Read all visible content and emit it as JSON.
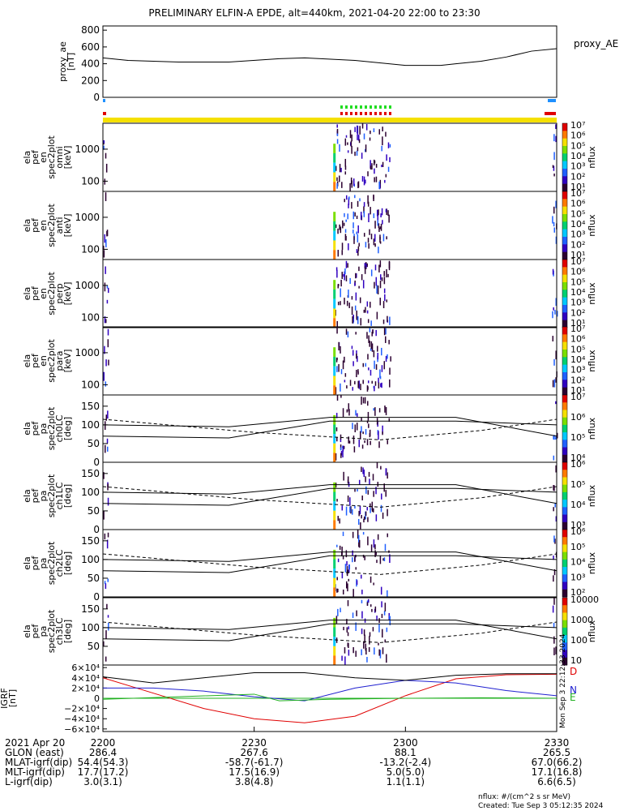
{
  "title": "PRELIMINARY ELFIN-A EPDE, alt=440km, 2021-04-20 22:00 to 23:30",
  "colors": {
    "axis": "#000000",
    "bx": "#2020d0",
    "by": "#20b020",
    "bz": "#e00000",
    "bt": "#000000",
    "yellow_bar": "#f5e000",
    "flag_red": "#e00000",
    "flag_blue": "#1e90ff",
    "flag_green": "#22dd22"
  },
  "ae_panel": {
    "ylabel_lines": [
      "proxy_ae",
      "[nT]"
    ],
    "yticks": [
      "800",
      "600",
      "400",
      "200",
      "0"
    ],
    "legend": "proxy_AE"
  },
  "spec_panels": [
    {
      "ylabel_lines": [
        "ela",
        "pef",
        "en",
        "spec2plot",
        "omni",
        "[keV]"
      ],
      "yticks": [
        "1000",
        "100"
      ],
      "cb_ticks": [
        "10⁷",
        "10⁶",
        "10⁵",
        "10⁴",
        "10³",
        "10²",
        "10¹"
      ],
      "cb_label": "nflux"
    },
    {
      "ylabel_lines": [
        "ela",
        "pef",
        "en",
        "spec2plot",
        "anti",
        "[keV]"
      ],
      "yticks": [
        "1000",
        "100"
      ],
      "cb_ticks": [
        "10⁷",
        "10⁶",
        "10⁵",
        "10⁴",
        "10³",
        "10²",
        "10¹"
      ],
      "cb_label": "nflux"
    },
    {
      "ylabel_lines": [
        "ela",
        "pef",
        "en",
        "spec2plot",
        "perp",
        "[keV]"
      ],
      "yticks": [
        "1000",
        "100"
      ],
      "cb_ticks": [
        "10⁷",
        "10⁶",
        "10⁵",
        "10⁴",
        "10³",
        "10²",
        "10¹"
      ],
      "cb_label": "nflux"
    },
    {
      "ylabel_lines": [
        "ela",
        "pef",
        "en",
        "spec2plot",
        "para",
        "[keV]"
      ],
      "yticks": [
        "1000",
        "100"
      ],
      "cb_ticks": [
        "10⁷",
        "10⁶",
        "10⁵",
        "10⁴",
        "10³",
        "10²",
        "10¹"
      ],
      "cb_label": "nflux"
    }
  ],
  "pa_panels": [
    {
      "ylabel_lines": [
        "ela",
        "pef",
        "pa",
        "spec2plot",
        "ch0LC",
        "[deg]"
      ],
      "yticks": [
        "150",
        "100",
        "50",
        "0"
      ],
      "cb_ticks": [
        "10⁷",
        "10⁶",
        "10⁵",
        "10⁴"
      ],
      "cb_label": "nflux"
    },
    {
      "ylabel_lines": [
        "ela",
        "pef",
        "pa",
        "spec2plot",
        "ch1LC",
        "[deg]"
      ],
      "yticks": [
        "150",
        "100",
        "50",
        "0"
      ],
      "cb_ticks": [
        "10⁶",
        "10⁵",
        "10⁴",
        "10³"
      ],
      "cb_label": "nflux"
    },
    {
      "ylabel_lines": [
        "ela",
        "pef",
        "pa",
        "spec2plot",
        "ch2LC",
        "[deg]"
      ],
      "yticks": [
        "150",
        "100",
        "50",
        "0"
      ],
      "cb_ticks": [
        "10⁶",
        "10⁵",
        "10⁴",
        "10³",
        "10²"
      ],
      "cb_label": "nflux"
    },
    {
      "ylabel_lines": [
        "ela",
        "pef",
        "pa",
        "spec2plot",
        "ch3LC",
        "[deg]"
      ],
      "yticks": [
        "150",
        "100",
        "50"
      ],
      "cb_ticks": [
        "10000",
        "1000",
        "100",
        "10"
      ],
      "cb_label": "nflux"
    }
  ],
  "igrf_panel": {
    "ylabel_lines": [
      "IGRF",
      "[nT]"
    ],
    "yticks": [
      "6×10⁴",
      "4×10⁴",
      "2×10⁴",
      "0",
      "−2×10⁴",
      "−4×10⁴",
      "−6×10⁴"
    ],
    "legend": [
      "D",
      "N",
      "E"
    ],
    "side_text": "Mon Sep 3 22:12:33 2024"
  },
  "x_axis": {
    "ticks": [
      "2200",
      "2230",
      "2300",
      "2330"
    ],
    "row_labels": [
      "2021 Apr 20",
      "GLON (east)",
      "MLAT-igrf(dip)",
      "MLT-igrf(dip)",
      "L-igrf(dip)"
    ],
    "columns": [
      [
        "2200",
        "286.4",
        "54.4(54.3)",
        "17.7(17.2)",
        "3.0(3.1)"
      ],
      [
        "2230",
        "267.6",
        "-58.7(-61.7)",
        "17.5(16.9)",
        "3.8(4.8)"
      ],
      [
        "2300",
        "88.1",
        "-13.2(-2.4)",
        "5.0(5.0)",
        "1.1(1.1)"
      ],
      [
        "2330",
        "265.5",
        "67.0(66.2)",
        "17.1(16.8)",
        "6.6(6.5)"
      ]
    ]
  },
  "footer": {
    "units": "nflux: #/(cm^2 s sr MeV)",
    "created": "Created: Tue Sep  3 05:12:35 2024"
  },
  "chart_data": {
    "type": "line",
    "x_range_minutes": [
      0,
      90
    ],
    "ae_series": {
      "name": "proxy_AE",
      "x_min": [
        0,
        5,
        15,
        25,
        35,
        40,
        50,
        60,
        67,
        70,
        75,
        80,
        85,
        90
      ],
      "values": [
        470,
        440,
        420,
        420,
        460,
        470,
        440,
        380,
        380,
        400,
        430,
        480,
        550,
        580
      ],
      "ylim": [
        0,
        850
      ]
    },
    "igrf": {
      "ylim": [
        -65000,
        65000
      ],
      "series": [
        {
          "name": "D",
          "x_min": [
            0,
            10,
            20,
            30,
            40,
            50,
            60,
            70,
            80,
            90
          ],
          "values": [
            40000,
            10000,
            -20000,
            -40000,
            -48000,
            -35000,
            5000,
            38000,
            46000,
            47000
          ]
        },
        {
          "name": "N",
          "x_min": [
            0,
            10,
            20,
            30,
            40,
            50,
            60,
            70,
            80,
            90
          ],
          "values": [
            20000,
            20000,
            14000,
            3000,
            -5000,
            20000,
            35000,
            30000,
            15000,
            5000
          ]
        },
        {
          "name": "E",
          "x_min": [
            0,
            15,
            30,
            35,
            45,
            60,
            75,
            90
          ],
          "values": [
            -2000,
            3000,
            8000,
            -5000,
            -2000,
            0,
            1000,
            0
          ]
        },
        {
          "name": "T",
          "x_min": [
            0,
            10,
            20,
            30,
            40,
            50,
            60,
            70,
            80,
            90
          ],
          "values": [
            42000,
            30000,
            40000,
            50000,
            50000,
            40000,
            35000,
            45000,
            48000,
            48000
          ]
        }
      ]
    },
    "pa_lines": {
      "ylim": [
        0,
        180
      ],
      "solid_upper": {
        "x_min": [
          0,
          25,
          45,
          70,
          90
        ],
        "values": [
          100,
          95,
          120,
          120,
          70
        ]
      },
      "solid_lower": {
        "x_min": [
          0,
          25,
          45,
          70,
          90
        ],
        "values": [
          70,
          65,
          110,
          110,
          100
        ]
      },
      "dashed": {
        "x_min": [
          0,
          30,
          55,
          75,
          90
        ],
        "values": [
          115,
          80,
          60,
          85,
          115
        ]
      }
    },
    "flux_bursts_min": [
      [
        46,
        57
      ],
      [
        0,
        1
      ],
      [
        89,
        90
      ]
    ]
  }
}
